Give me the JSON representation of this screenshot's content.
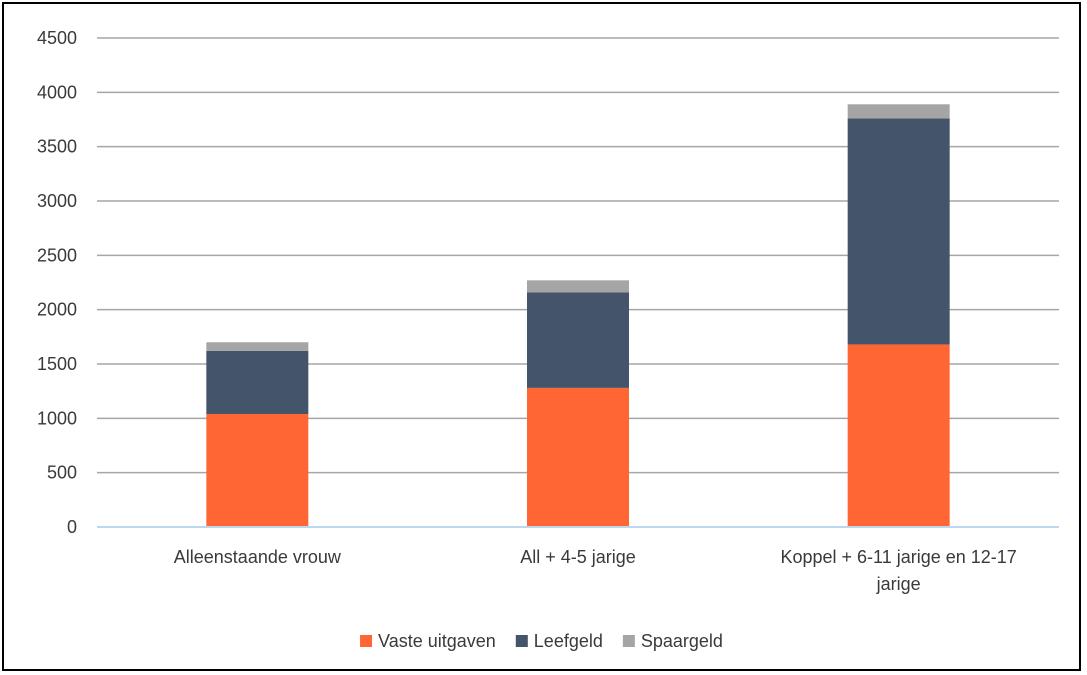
{
  "chart_data": {
    "type": "bar",
    "stacked": true,
    "title": "",
    "xlabel": "",
    "ylabel": "",
    "ylim": [
      0,
      4500
    ],
    "yticks": [
      0,
      500,
      1000,
      1500,
      2000,
      2500,
      3000,
      3500,
      4000,
      4500
    ],
    "grid": true,
    "legend_position": "bottom",
    "categories": [
      [
        "Alleenstaande vrouw"
      ],
      [
        "All + 4-5 jarige"
      ],
      [
        "Koppel + 6-11 jarige en 12-17",
        "jarige"
      ]
    ],
    "series": [
      {
        "name": "Vaste uitgaven",
        "color": "#FF6633",
        "values": [
          1040,
          1280,
          1680
        ]
      },
      {
        "name": "Leefgeld",
        "color": "#44546A",
        "values": [
          580,
          880,
          2080
        ]
      },
      {
        "name": "Spaargeld",
        "color": "#A5A5A5",
        "values": [
          80,
          110,
          130
        ]
      }
    ],
    "colors": {
      "grid": "#A6A6A6",
      "axis": "#BDD7EE"
    }
  }
}
